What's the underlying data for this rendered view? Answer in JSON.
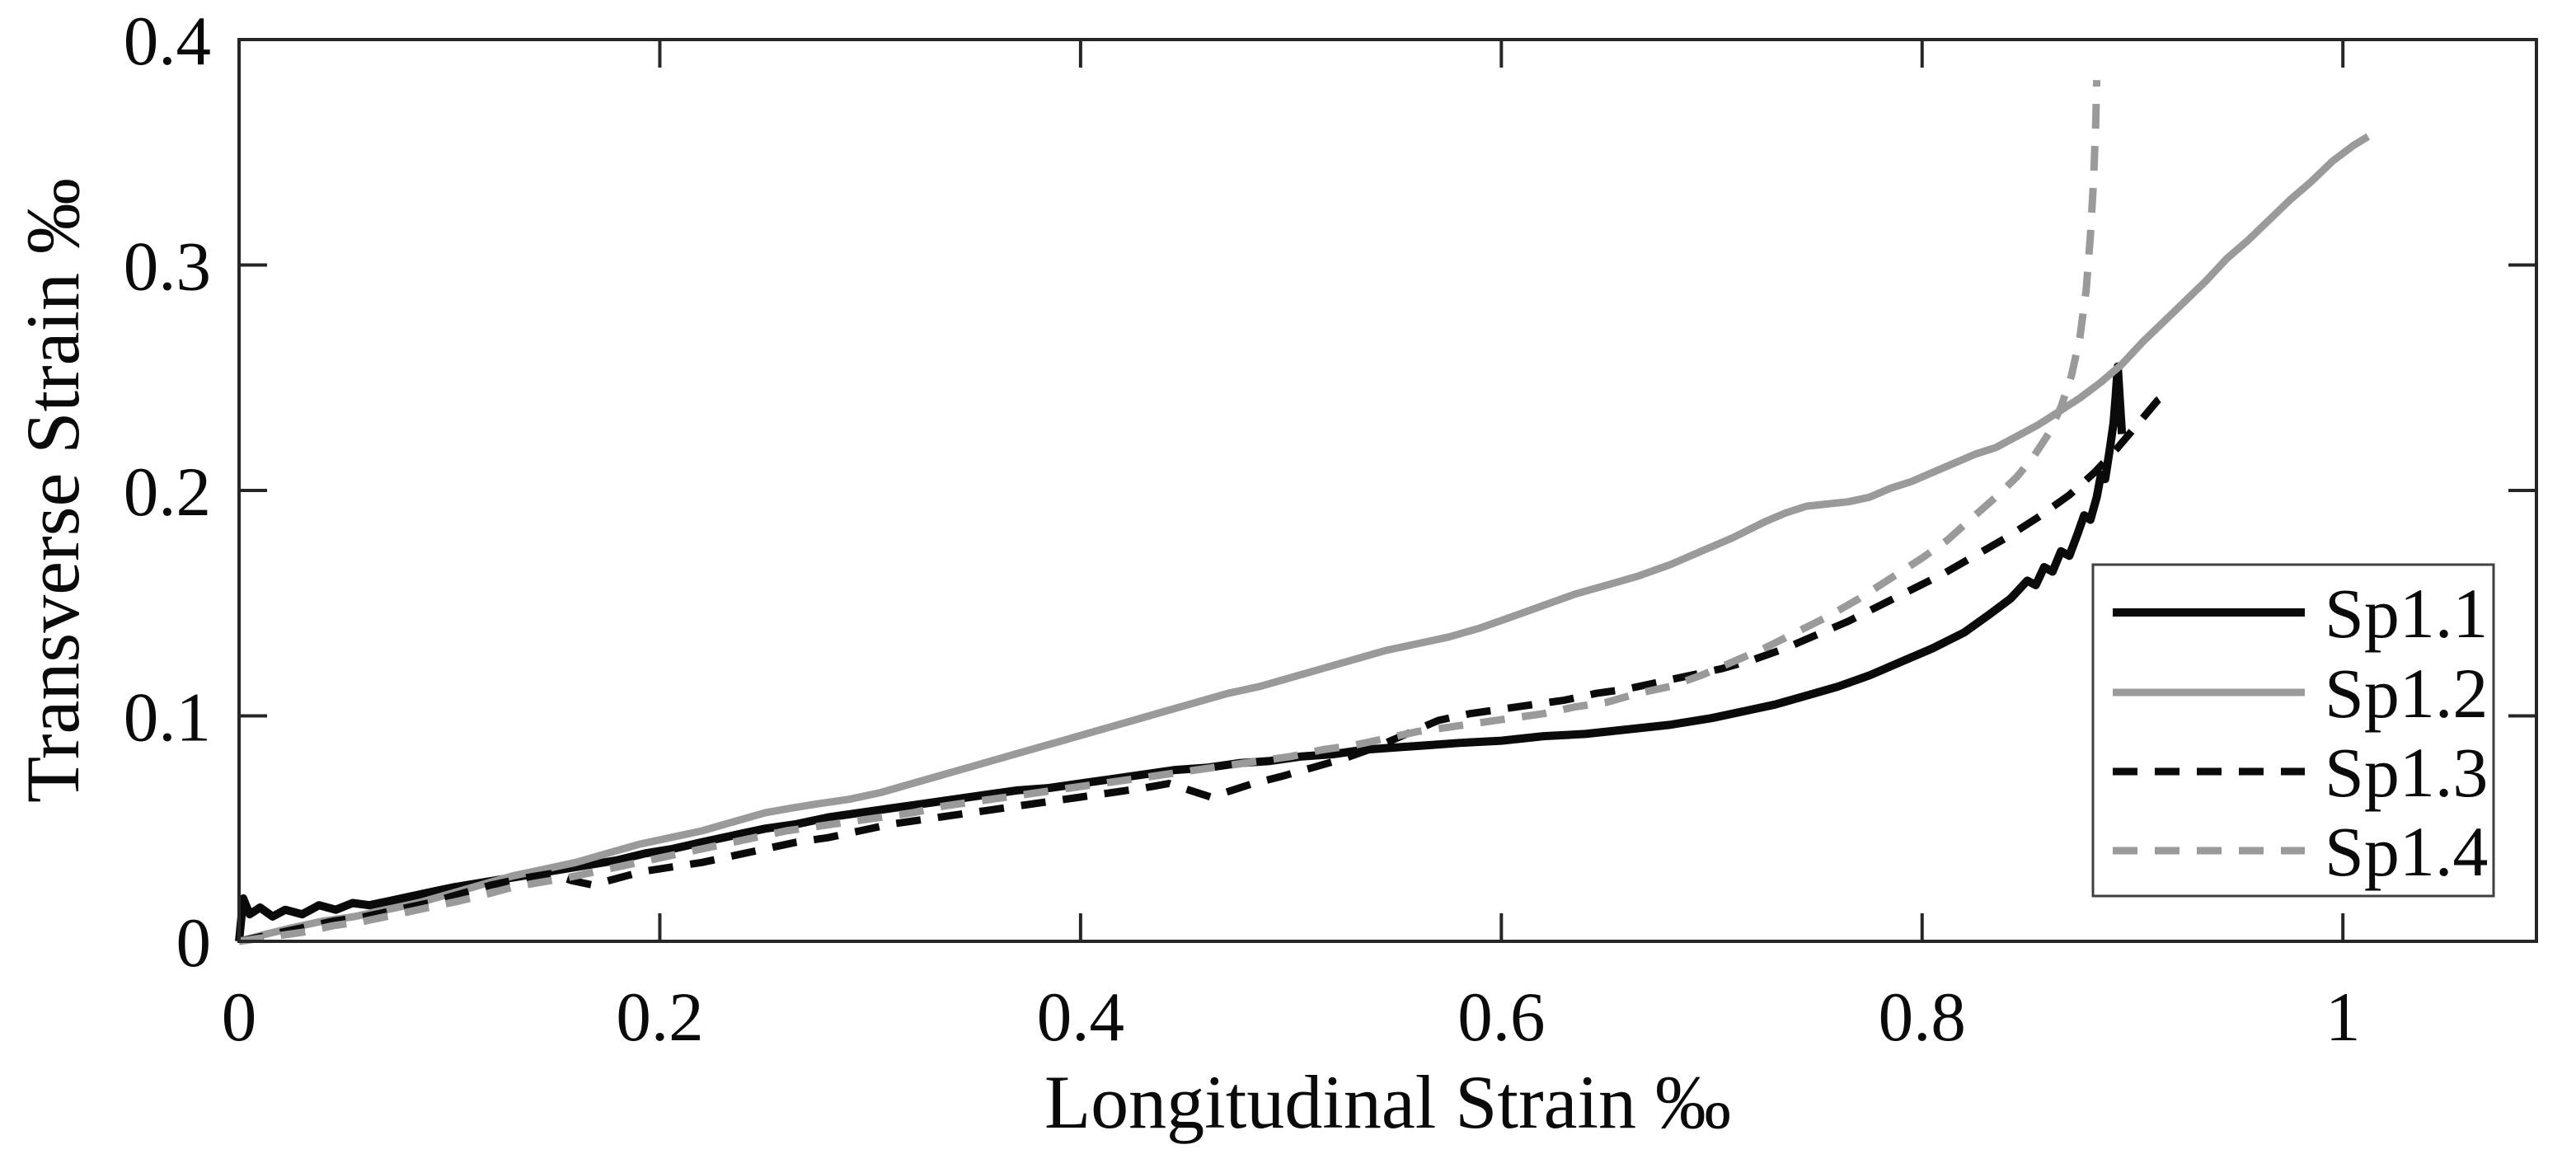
{
  "figure": {
    "background": "#ffffff",
    "axis_color": "#262626",
    "text_color": "#0a0a0a"
  },
  "chart_data": {
    "type": "line",
    "title": "",
    "xlabel": "Longitudinal Strain ‰",
    "ylabel": "Transverse Strain ‰",
    "xlim": [
      0,
      1.092
    ],
    "ylim": [
      0,
      0.4
    ],
    "grid": false,
    "x_ticks": {
      "values": [
        0,
        0.2,
        0.4,
        0.6,
        0.8,
        1
      ],
      "labels": [
        "0",
        "0.2",
        "0.4",
        "0.6",
        "0.8",
        "1"
      ]
    },
    "y_ticks": {
      "values": [
        0,
        0.1,
        0.2,
        0.3,
        0.4
      ],
      "labels": [
        "0",
        "0.1",
        "0.2",
        "0.3",
        "0.4"
      ]
    },
    "legend": {
      "position": "lower-right",
      "border": true
    },
    "series": [
      {
        "name": "Sp1.1",
        "color": "#0a0a0a",
        "style": "solid",
        "width": 10,
        "points": [
          [
            0.0,
            0.0
          ],
          [
            0.002,
            0.019
          ],
          [
            0.005,
            0.012
          ],
          [
            0.01,
            0.015
          ],
          [
            0.016,
            0.011
          ],
          [
            0.022,
            0.014
          ],
          [
            0.03,
            0.012
          ],
          [
            0.038,
            0.016
          ],
          [
            0.046,
            0.014
          ],
          [
            0.054,
            0.017
          ],
          [
            0.062,
            0.016
          ],
          [
            0.072,
            0.018
          ],
          [
            0.082,
            0.02
          ],
          [
            0.092,
            0.022
          ],
          [
            0.102,
            0.024
          ],
          [
            0.115,
            0.026
          ],
          [
            0.128,
            0.028
          ],
          [
            0.141,
            0.03
          ],
          [
            0.154,
            0.032
          ],
          [
            0.167,
            0.034
          ],
          [
            0.18,
            0.036
          ],
          [
            0.193,
            0.039
          ],
          [
            0.206,
            0.041
          ],
          [
            0.22,
            0.044
          ],
          [
            0.235,
            0.047
          ],
          [
            0.25,
            0.05
          ],
          [
            0.265,
            0.052
          ],
          [
            0.28,
            0.055
          ],
          [
            0.295,
            0.057
          ],
          [
            0.31,
            0.059
          ],
          [
            0.325,
            0.061
          ],
          [
            0.34,
            0.063
          ],
          [
            0.355,
            0.065
          ],
          [
            0.37,
            0.067
          ],
          [
            0.385,
            0.068
          ],
          [
            0.4,
            0.07
          ],
          [
            0.415,
            0.072
          ],
          [
            0.43,
            0.074
          ],
          [
            0.445,
            0.076
          ],
          [
            0.46,
            0.077
          ],
          [
            0.475,
            0.079
          ],
          [
            0.49,
            0.08
          ],
          [
            0.505,
            0.082
          ],
          [
            0.52,
            0.083
          ],
          [
            0.535,
            0.085
          ],
          [
            0.55,
            0.086
          ],
          [
            0.565,
            0.087
          ],
          [
            0.58,
            0.088
          ],
          [
            0.6,
            0.089
          ],
          [
            0.62,
            0.091
          ],
          [
            0.64,
            0.092
          ],
          [
            0.66,
            0.094
          ],
          [
            0.68,
            0.096
          ],
          [
            0.7,
            0.099
          ],
          [
            0.715,
            0.102
          ],
          [
            0.73,
            0.105
          ],
          [
            0.745,
            0.109
          ],
          [
            0.76,
            0.113
          ],
          [
            0.775,
            0.118
          ],
          [
            0.79,
            0.124
          ],
          [
            0.805,
            0.13
          ],
          [
            0.82,
            0.137
          ],
          [
            0.832,
            0.145
          ],
          [
            0.842,
            0.152
          ],
          [
            0.85,
            0.16
          ],
          [
            0.854,
            0.158
          ],
          [
            0.858,
            0.166
          ],
          [
            0.862,
            0.164
          ],
          [
            0.866,
            0.173
          ],
          [
            0.87,
            0.171
          ],
          [
            0.874,
            0.181
          ],
          [
            0.877,
            0.189
          ],
          [
            0.88,
            0.187
          ],
          [
            0.883,
            0.197
          ],
          [
            0.885,
            0.207
          ],
          [
            0.887,
            0.205
          ],
          [
            0.889,
            0.217
          ],
          [
            0.891,
            0.23
          ],
          [
            0.892,
            0.242
          ],
          [
            0.893,
            0.255
          ],
          [
            0.895,
            0.225
          ]
        ]
      },
      {
        "name": "Sp1.2",
        "color": "#9a9a9a",
        "style": "solid",
        "width": 9,
        "points": [
          [
            0.0,
            0.0
          ],
          [
            0.012,
            0.003
          ],
          [
            0.025,
            0.006
          ],
          [
            0.04,
            0.009
          ],
          [
            0.055,
            0.011
          ],
          [
            0.07,
            0.014
          ],
          [
            0.085,
            0.017
          ],
          [
            0.1,
            0.021
          ],
          [
            0.115,
            0.025
          ],
          [
            0.13,
            0.029
          ],
          [
            0.145,
            0.032
          ],
          [
            0.16,
            0.035
          ],
          [
            0.175,
            0.039
          ],
          [
            0.19,
            0.043
          ],
          [
            0.205,
            0.046
          ],
          [
            0.22,
            0.049
          ],
          [
            0.235,
            0.053
          ],
          [
            0.25,
            0.057
          ],
          [
            0.262,
            0.059
          ],
          [
            0.275,
            0.061
          ],
          [
            0.29,
            0.063
          ],
          [
            0.305,
            0.066
          ],
          [
            0.32,
            0.07
          ],
          [
            0.335,
            0.074
          ],
          [
            0.35,
            0.078
          ],
          [
            0.365,
            0.082
          ],
          [
            0.38,
            0.086
          ],
          [
            0.395,
            0.09
          ],
          [
            0.41,
            0.094
          ],
          [
            0.425,
            0.098
          ],
          [
            0.44,
            0.102
          ],
          [
            0.455,
            0.106
          ],
          [
            0.47,
            0.11
          ],
          [
            0.485,
            0.113
          ],
          [
            0.5,
            0.117
          ],
          [
            0.515,
            0.121
          ],
          [
            0.53,
            0.125
          ],
          [
            0.545,
            0.129
          ],
          [
            0.56,
            0.132
          ],
          [
            0.575,
            0.135
          ],
          [
            0.59,
            0.139
          ],
          [
            0.605,
            0.144
          ],
          [
            0.62,
            0.149
          ],
          [
            0.635,
            0.154
          ],
          [
            0.65,
            0.158
          ],
          [
            0.665,
            0.162
          ],
          [
            0.68,
            0.167
          ],
          [
            0.695,
            0.173
          ],
          [
            0.71,
            0.179
          ],
          [
            0.725,
            0.186
          ],
          [
            0.735,
            0.19
          ],
          [
            0.745,
            0.193
          ],
          [
            0.755,
            0.194
          ],
          [
            0.765,
            0.195
          ],
          [
            0.775,
            0.197
          ],
          [
            0.785,
            0.201
          ],
          [
            0.795,
            0.204
          ],
          [
            0.805,
            0.208
          ],
          [
            0.815,
            0.212
          ],
          [
            0.825,
            0.216
          ],
          [
            0.835,
            0.219
          ],
          [
            0.845,
            0.224
          ],
          [
            0.855,
            0.229
          ],
          [
            0.865,
            0.235
          ],
          [
            0.875,
            0.241
          ],
          [
            0.885,
            0.248
          ],
          [
            0.895,
            0.256
          ],
          [
            0.905,
            0.266
          ],
          [
            0.915,
            0.275
          ],
          [
            0.925,
            0.284
          ],
          [
            0.935,
            0.293
          ],
          [
            0.945,
            0.303
          ],
          [
            0.955,
            0.311
          ],
          [
            0.965,
            0.32
          ],
          [
            0.975,
            0.329
          ],
          [
            0.985,
            0.337
          ],
          [
            0.995,
            0.346
          ],
          [
            1.005,
            0.353
          ],
          [
            1.012,
            0.357
          ]
        ]
      },
      {
        "name": "Sp1.3",
        "color": "#0a0a0a",
        "style": "dashed",
        "width": 9,
        "points": [
          [
            0.0,
            0.0
          ],
          [
            0.015,
            0.003
          ],
          [
            0.03,
            0.006
          ],
          [
            0.045,
            0.009
          ],
          [
            0.06,
            0.011
          ],
          [
            0.075,
            0.014
          ],
          [
            0.09,
            0.017
          ],
          [
            0.105,
            0.021
          ],
          [
            0.12,
            0.025
          ],
          [
            0.135,
            0.028
          ],
          [
            0.148,
            0.03
          ],
          [
            0.158,
            0.027
          ],
          [
            0.168,
            0.025
          ],
          [
            0.18,
            0.028
          ],
          [
            0.192,
            0.031
          ],
          [
            0.206,
            0.033
          ],
          [
            0.22,
            0.035
          ],
          [
            0.235,
            0.038
          ],
          [
            0.25,
            0.041
          ],
          [
            0.265,
            0.044
          ],
          [
            0.28,
            0.046
          ],
          [
            0.295,
            0.049
          ],
          [
            0.31,
            0.052
          ],
          [
            0.325,
            0.054
          ],
          [
            0.34,
            0.056
          ],
          [
            0.355,
            0.058
          ],
          [
            0.37,
            0.06
          ],
          [
            0.385,
            0.062
          ],
          [
            0.4,
            0.064
          ],
          [
            0.415,
            0.066
          ],
          [
            0.43,
            0.068
          ],
          [
            0.442,
            0.07
          ],
          [
            0.452,
            0.067
          ],
          [
            0.462,
            0.064
          ],
          [
            0.472,
            0.067
          ],
          [
            0.482,
            0.07
          ],
          [
            0.495,
            0.073
          ],
          [
            0.51,
            0.077
          ],
          [
            0.525,
            0.081
          ],
          [
            0.54,
            0.086
          ],
          [
            0.555,
            0.092
          ],
          [
            0.57,
            0.098
          ],
          [
            0.585,
            0.101
          ],
          [
            0.6,
            0.103
          ],
          [
            0.615,
            0.105
          ],
          [
            0.63,
            0.107
          ],
          [
            0.645,
            0.11
          ],
          [
            0.66,
            0.112
          ],
          [
            0.675,
            0.115
          ],
          [
            0.69,
            0.118
          ],
          [
            0.705,
            0.121
          ],
          [
            0.72,
            0.125
          ],
          [
            0.735,
            0.13
          ],
          [
            0.75,
            0.136
          ],
          [
            0.765,
            0.142
          ],
          [
            0.78,
            0.149
          ],
          [
            0.795,
            0.156
          ],
          [
            0.81,
            0.163
          ],
          [
            0.825,
            0.171
          ],
          [
            0.84,
            0.179
          ],
          [
            0.855,
            0.188
          ],
          [
            0.87,
            0.198
          ],
          [
            0.882,
            0.208
          ],
          [
            0.893,
            0.219
          ],
          [
            0.903,
            0.23
          ],
          [
            0.912,
            0.24
          ],
          [
            0.918,
            0.244
          ]
        ]
      },
      {
        "name": "Sp1.4",
        "color": "#9a9a9a",
        "style": "dashed",
        "width": 9,
        "points": [
          [
            0.0,
            0.0
          ],
          [
            0.015,
            0.002
          ],
          [
            0.03,
            0.004
          ],
          [
            0.045,
            0.007
          ],
          [
            0.06,
            0.009
          ],
          [
            0.075,
            0.012
          ],
          [
            0.09,
            0.015
          ],
          [
            0.105,
            0.018
          ],
          [
            0.118,
            0.021
          ],
          [
            0.13,
            0.024
          ],
          [
            0.142,
            0.026
          ],
          [
            0.155,
            0.028
          ],
          [
            0.17,
            0.031
          ],
          [
            0.185,
            0.034
          ],
          [
            0.2,
            0.037
          ],
          [
            0.215,
            0.04
          ],
          [
            0.23,
            0.043
          ],
          [
            0.245,
            0.046
          ],
          [
            0.26,
            0.049
          ],
          [
            0.275,
            0.051
          ],
          [
            0.29,
            0.053
          ],
          [
            0.305,
            0.055
          ],
          [
            0.32,
            0.057
          ],
          [
            0.335,
            0.06
          ],
          [
            0.35,
            0.062
          ],
          [
            0.365,
            0.064
          ],
          [
            0.38,
            0.066
          ],
          [
            0.395,
            0.068
          ],
          [
            0.41,
            0.07
          ],
          [
            0.425,
            0.072
          ],
          [
            0.44,
            0.074
          ],
          [
            0.455,
            0.076
          ],
          [
            0.47,
            0.078
          ],
          [
            0.485,
            0.08
          ],
          [
            0.5,
            0.082
          ],
          [
            0.515,
            0.085
          ],
          [
            0.53,
            0.087
          ],
          [
            0.545,
            0.09
          ],
          [
            0.56,
            0.093
          ],
          [
            0.575,
            0.095
          ],
          [
            0.59,
            0.097
          ],
          [
            0.605,
            0.099
          ],
          [
            0.62,
            0.101
          ],
          [
            0.635,
            0.104
          ],
          [
            0.65,
            0.106
          ],
          [
            0.665,
            0.11
          ],
          [
            0.68,
            0.113
          ],
          [
            0.695,
            0.118
          ],
          [
            0.71,
            0.124
          ],
          [
            0.725,
            0.13
          ],
          [
            0.74,
            0.137
          ],
          [
            0.755,
            0.144
          ],
          [
            0.77,
            0.152
          ],
          [
            0.785,
            0.161
          ],
          [
            0.8,
            0.17
          ],
          [
            0.812,
            0.178
          ],
          [
            0.824,
            0.188
          ],
          [
            0.835,
            0.197
          ],
          [
            0.845,
            0.206
          ],
          [
            0.853,
            0.215
          ],
          [
            0.86,
            0.225
          ],
          [
            0.866,
            0.237
          ],
          [
            0.871,
            0.251
          ],
          [
            0.875,
            0.268
          ],
          [
            0.878,
            0.289
          ],
          [
            0.88,
            0.313
          ],
          [
            0.8815,
            0.338
          ],
          [
            0.8825,
            0.362
          ],
          [
            0.883,
            0.382
          ]
        ]
      }
    ]
  }
}
